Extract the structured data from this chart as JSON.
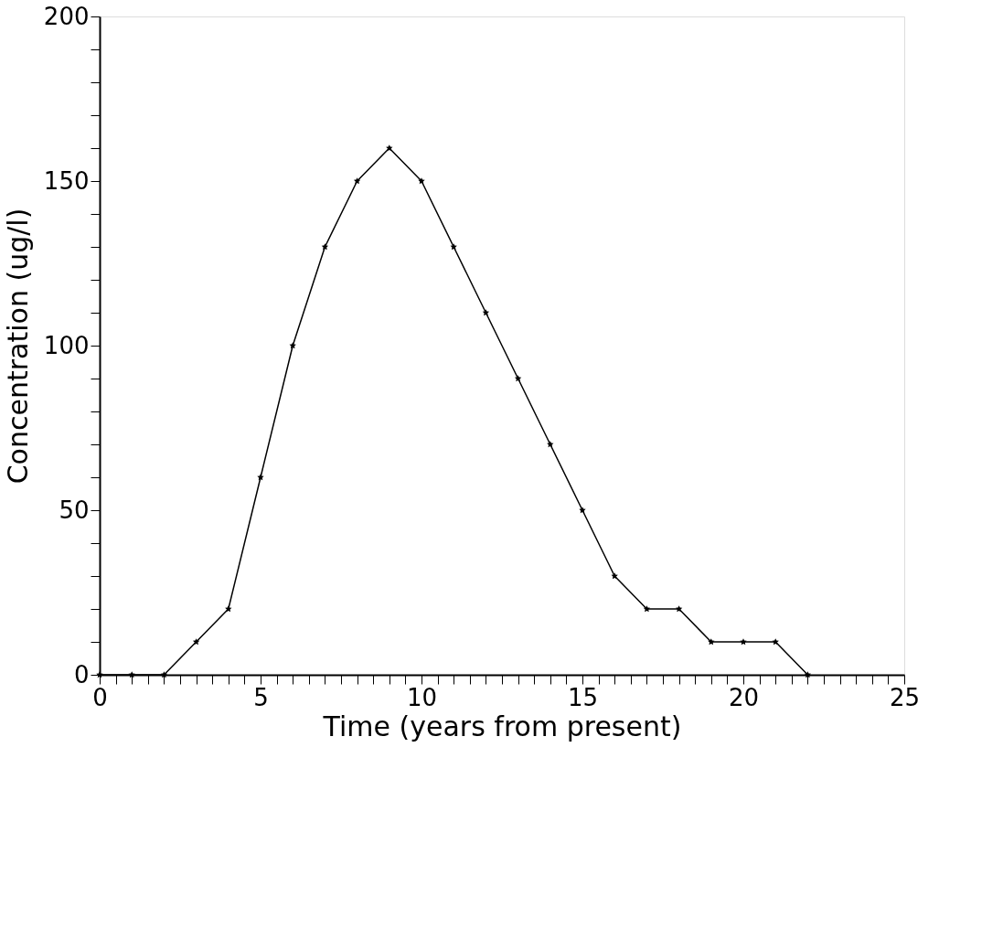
{
  "chart_data": {
    "type": "line",
    "xlabel": "Time  (years from present)",
    "ylabel": "Concentration  (ug/l)",
    "x": [
      0,
      1,
      2,
      3,
      4,
      5,
      6,
      7,
      8,
      9,
      10,
      11,
      12,
      13,
      14,
      15,
      16,
      17,
      18,
      19,
      20,
      21,
      22
    ],
    "series": [
      {
        "color": "#000000",
        "values": [
          0,
          0,
          0,
          10,
          20,
          60,
          100,
          130,
          150,
          160,
          150,
          130,
          110,
          90,
          70,
          50,
          30,
          20,
          20,
          10,
          10,
          10,
          0
        ]
      }
    ],
    "xlim": [
      0,
      25
    ],
    "ylim": [
      0,
      200
    ],
    "xticks": [
      0,
      {
        "value": 0.5,
        "label": null
      },
      {
        "value": 1,
        "label": null
      },
      {
        "value": 1.5,
        "label": null
      },
      {
        "value": 2,
        "label": null
      },
      {
        "value": 2.5,
        "label": null
      },
      {
        "value": 3,
        "label": null
      },
      {
        "value": 3.5,
        "label": null
      },
      {
        "value": 4,
        "label": null
      },
      {
        "value": 4.5,
        "label": null
      },
      5,
      {
        "value": 5.5,
        "label": null
      },
      {
        "value": 6,
        "label": null
      },
      {
        "value": 6.5,
        "label": null
      },
      {
        "value": 7,
        "label": null
      },
      {
        "value": 7.5,
        "label": null
      },
      {
        "value": 8,
        "label": null
      },
      {
        "value": 8.5,
        "label": null
      },
      {
        "value": 9,
        "label": null
      },
      {
        "value": 9.5,
        "label": null
      },
      10,
      {
        "value": 10.5,
        "label": null
      },
      {
        "value": 11,
        "label": null
      },
      {
        "value": 11.5,
        "label": null
      },
      {
        "value": 12,
        "label": null
      },
      {
        "value": 12.5,
        "label": null
      },
      {
        "value": 13,
        "label": null
      },
      {
        "value": 13.5,
        "label": null
      },
      {
        "value": 14,
        "label": null
      },
      {
        "value": 14.5,
        "label": null
      },
      15,
      {
        "value": 15.5,
        "label": null
      },
      {
        "value": 16,
        "label": null
      },
      {
        "value": 16.5,
        "label": null
      },
      {
        "value": 17,
        "label": null
      },
      {
        "value": 17.5,
        "label": null
      },
      {
        "value": 18,
        "label": null
      },
      {
        "value": 18.5,
        "label": null
      },
      {
        "value": 19,
        "label": null
      },
      {
        "value": 19.5,
        "label": null
      },
      20,
      {
        "value": 20.5,
        "label": null
      },
      {
        "value": 21,
        "label": null
      },
      {
        "value": 21.5,
        "label": null
      },
      {
        "value": 22,
        "label": null
      },
      {
        "value": 22.5,
        "label": null
      },
      {
        "value": 23,
        "label": null
      },
      {
        "value": 23.5,
        "label": null
      },
      {
        "value": 24,
        "label": null
      },
      {
        "value": 24.5,
        "label": null
      },
      25
    ],
    "yticks": [
      0,
      {
        "value": 10,
        "label": null
      },
      {
        "value": 20,
        "label": null
      },
      {
        "value": 30,
        "label": null
      },
      {
        "value": 40,
        "label": null
      },
      50,
      {
        "value": 60,
        "label": null
      },
      {
        "value": 70,
        "label": null
      },
      {
        "value": 80,
        "label": null
      },
      {
        "value": 90,
        "label": null
      },
      100,
      {
        "value": 110,
        "label": null
      },
      {
        "value": 120,
        "label": null
      },
      {
        "value": 130,
        "label": null
      },
      {
        "value": 140,
        "label": null
      },
      150,
      {
        "value": 160,
        "label": null
      },
      {
        "value": 170,
        "label": null
      },
      {
        "value": 180,
        "label": null
      },
      {
        "value": 190,
        "label": null
      },
      200
    ],
    "grid": false,
    "legend": false,
    "marker": "star",
    "line_style": "solid"
  }
}
